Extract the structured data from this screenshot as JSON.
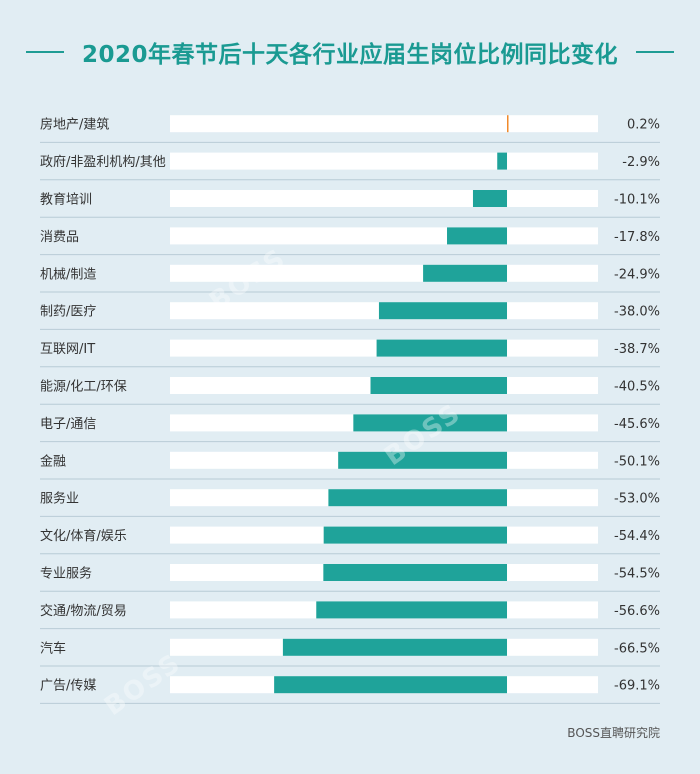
{
  "header": {
    "title": "2020年春节后十天各行业应届生岗位比例同比变化"
  },
  "footer": {
    "source": "BOSS直聘研究院"
  },
  "colors": {
    "bar_negative": "#1fa39a",
    "bar_positive": "#f08a2b",
    "track": "#ffffff",
    "background": "#e1edf3",
    "title": "#1a9a92"
  },
  "chart_data": {
    "type": "bar",
    "orientation": "horizontal",
    "title": "2020年春节后十天各行业应届生岗位比例同比变化",
    "xlim": [
      -100,
      27
    ],
    "unit": "%",
    "categories": [
      "房地产/建筑",
      "政府/非盈利机构/其他",
      "教育培训",
      "消费品",
      "机械/制造",
      "制药/医疗",
      "互联网/IT",
      "能源/化工/环保",
      "电子/通信",
      "金融",
      "服务业",
      "文化/体育/娱乐",
      "专业服务",
      "交通/物流/贸易",
      "汽车",
      "广告/传媒"
    ],
    "values": [
      0.2,
      -2.9,
      -10.1,
      -17.8,
      -24.9,
      -38.0,
      -38.7,
      -40.5,
      -45.6,
      -50.1,
      -53.0,
      -54.4,
      -54.5,
      -56.6,
      -66.5,
      -69.1
    ],
    "value_labels": [
      "0.2%",
      "-2.9%",
      "-10.1%",
      "-17.8%",
      "-24.9%",
      "-38.0%",
      "-38.7%",
      "-40.5%",
      "-45.6%",
      "-50.1%",
      "-53.0%",
      "-54.4%",
      "-54.5%",
      "-56.6%",
      "-66.5%",
      "-69.1%"
    ]
  }
}
